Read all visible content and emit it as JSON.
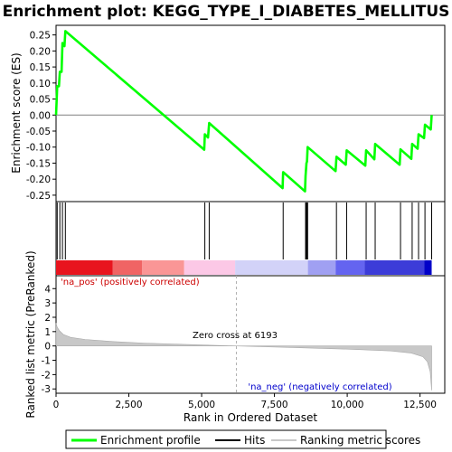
{
  "chart_data": {
    "type": "line",
    "title": "Enrichment plot: KEGG_TYPE_I_DIABETES_MELLITUS",
    "es_panel": {
      "ylabel": "Enrichment score (ES)",
      "ylim": [
        -0.27,
        0.28
      ],
      "yticks": [
        0.25,
        0.2,
        0.15,
        0.1,
        0.05,
        0.0,
        -0.05,
        -0.1,
        -0.15,
        -0.2,
        -0.25
      ],
      "ytick_labels": [
        "0.25",
        "0.20",
        "0.15",
        "0.10",
        "0.05",
        "0.00",
        "-0.05",
        "-0.10",
        "-0.15",
        "-0.20",
        "-0.25"
      ],
      "series": [
        {
          "name": "Enrichment profile",
          "color": "#00ff00",
          "points": [
            [
              0,
              0.0
            ],
            [
              40,
              0.09
            ],
            [
              100,
              0.09
            ],
            [
              130,
              0.135
            ],
            [
              190,
              0.135
            ],
            [
              220,
              0.225
            ],
            [
              290,
              0.215
            ],
            [
              320,
              0.262
            ],
            [
              5090,
              -0.108
            ],
            [
              5110,
              -0.06
            ],
            [
              5220,
              -0.07
            ],
            [
              5260,
              -0.025
            ],
            [
              7780,
              -0.228
            ],
            [
              7800,
              -0.178
            ],
            [
              8550,
              -0.238
            ],
            [
              8570,
              -0.19
            ],
            [
              8600,
              -0.15
            ],
            [
              8620,
              -0.145
            ],
            [
              8640,
              -0.1
            ],
            [
              9600,
              -0.175
            ],
            [
              9630,
              -0.13
            ],
            [
              9950,
              -0.155
            ],
            [
              9980,
              -0.11
            ],
            [
              10620,
              -0.158
            ],
            [
              10650,
              -0.11
            ],
            [
              10930,
              -0.138
            ],
            [
              10960,
              -0.09
            ],
            [
              11800,
              -0.155
            ],
            [
              11830,
              -0.107
            ],
            [
              12200,
              -0.137
            ],
            [
              12230,
              -0.09
            ],
            [
              12420,
              -0.105
            ],
            [
              12450,
              -0.06
            ],
            [
              12640,
              -0.072
            ],
            [
              12670,
              -0.03
            ],
            [
              12870,
              -0.045
            ],
            [
              12900,
              0.0
            ]
          ]
        }
      ]
    },
    "hits_panel": {
      "positions": [
        40,
        130,
        220,
        320,
        5110,
        5260,
        7800,
        8570,
        8600,
        8620,
        8640,
        9630,
        9980,
        10650,
        10960,
        11830,
        12230,
        12450,
        12670,
        12900
      ],
      "heatmap_colors": [
        "#e8141e",
        "#f06464",
        "#fa9696",
        "#fcc8e6",
        "#d2d2f8",
        "#a0a0f2",
        "#6464f0",
        "#3c3cd8",
        "#0000c8"
      ],
      "heatmap_breaks": [
        0,
        1950,
        2950,
        4400,
        6150,
        8650,
        9600,
        10600,
        12650,
        12900
      ]
    },
    "metric_panel": {
      "ylabel": "Ranked list metric (PreRanked)",
      "ylim": [
        -3.3,
        4.9
      ],
      "yticks": [
        4,
        3,
        2,
        1,
        0,
        -1,
        -2,
        -3
      ],
      "ytick_labels": [
        "4",
        "3",
        "2",
        "1",
        "0",
        "-1",
        "-2",
        "-3"
      ],
      "fill_color": "#c8c8c8",
      "curve": [
        [
          0,
          1.6
        ],
        [
          40,
          1.3
        ],
        [
          120,
          1.05
        ],
        [
          250,
          0.8
        ],
        [
          500,
          0.6
        ],
        [
          1000,
          0.45
        ],
        [
          2000,
          0.3
        ],
        [
          3000,
          0.2
        ],
        [
          4500,
          0.1
        ],
        [
          6193,
          0.0
        ],
        [
          8000,
          -0.1
        ],
        [
          10000,
          -0.22
        ],
        [
          11500,
          -0.35
        ],
        [
          12200,
          -0.5
        ],
        [
          12600,
          -0.75
        ],
        [
          12750,
          -1.1
        ],
        [
          12850,
          -1.8
        ],
        [
          12900,
          -3.1
        ]
      ],
      "pos_label": "'na_pos' (positively correlated)",
      "neg_label": "'na_neg' (negatively correlated)",
      "zero_cross_label": "Zero cross at 6193",
      "zero_cross": 6193
    },
    "xaxis": {
      "xlabel": "Rank in Ordered Dataset",
      "xlim": [
        0,
        13350
      ],
      "xticks": [
        0,
        2500,
        5000,
        7500,
        10000,
        12500
      ],
      "xtick_labels": [
        "0",
        "2,500",
        "5,000",
        "7,500",
        "10,000",
        "12,500"
      ]
    },
    "legend": {
      "placement": "bottom",
      "entries": [
        {
          "label": "Enrichment profile",
          "color": "#00ff00"
        },
        {
          "label": "Hits",
          "color": "#000000"
        },
        {
          "label": "Ranking metric scores",
          "color": "#c8c8c8"
        }
      ]
    }
  }
}
